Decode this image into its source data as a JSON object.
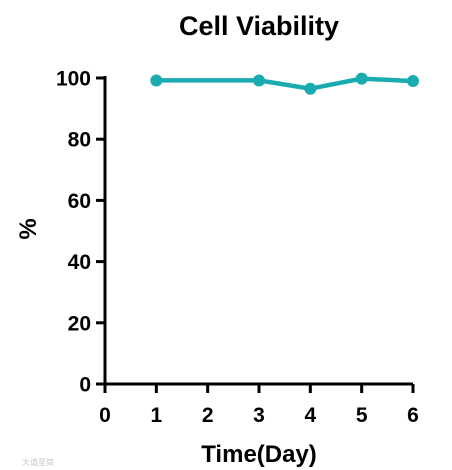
{
  "chart_data": {
    "type": "line",
    "title": "Cell Viability",
    "xlabel": "Time(Day)",
    "ylabel": "%",
    "xlim": [
      0,
      6
    ],
    "ylim": [
      0,
      100
    ],
    "xticks": [
      0,
      1,
      2,
      3,
      4,
      5,
      6
    ],
    "yticks": [
      0,
      20,
      40,
      60,
      80,
      100
    ],
    "grid": false,
    "series": [
      {
        "color": "#1aabb0",
        "x": [
          1,
          3,
          4,
          5,
          6
        ],
        "y": [
          99.2,
          99.2,
          96.5,
          99.8,
          99.0
        ]
      }
    ]
  },
  "watermark": {
    "text": "大道至简"
  }
}
